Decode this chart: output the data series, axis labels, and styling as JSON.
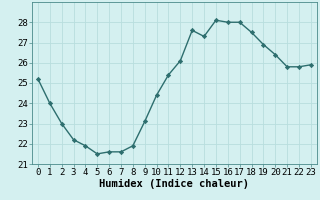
{
  "x": [
    0,
    1,
    2,
    3,
    4,
    5,
    6,
    7,
    8,
    9,
    10,
    11,
    12,
    13,
    14,
    15,
    16,
    17,
    18,
    19,
    20,
    21,
    22,
    23
  ],
  "y": [
    25.2,
    24.0,
    23.0,
    22.2,
    21.9,
    21.5,
    21.6,
    21.6,
    21.9,
    23.1,
    24.4,
    25.4,
    26.1,
    27.6,
    27.3,
    28.1,
    28.0,
    28.0,
    27.5,
    26.9,
    26.4,
    25.8,
    25.8,
    25.9
  ],
  "line_color": "#2d6e6e",
  "marker": "D",
  "marker_size": 2.2,
  "line_width": 1.0,
  "bg_color": "#d4f0f0",
  "grid_color": "#b8dede",
  "xlabel": "Humidex (Indice chaleur)",
  "xlabel_fontsize": 7.5,
  "tick_fontsize": 6.5,
  "xlim": [
    -0.5,
    23.5
  ],
  "ylim": [
    21,
    29
  ],
  "yticks": [
    21,
    22,
    23,
    24,
    25,
    26,
    27,
    28
  ],
  "xticks": [
    0,
    1,
    2,
    3,
    4,
    5,
    6,
    7,
    8,
    9,
    10,
    11,
    12,
    13,
    14,
    15,
    16,
    17,
    18,
    19,
    20,
    21,
    22,
    23
  ],
  "xtick_labels": [
    "0",
    "1",
    "2",
    "3",
    "4",
    "5",
    "6",
    "7",
    "8",
    "9",
    "10",
    "11",
    "12",
    "13",
    "14",
    "15",
    "16",
    "17",
    "18",
    "19",
    "20",
    "21",
    "22",
    "23"
  ]
}
